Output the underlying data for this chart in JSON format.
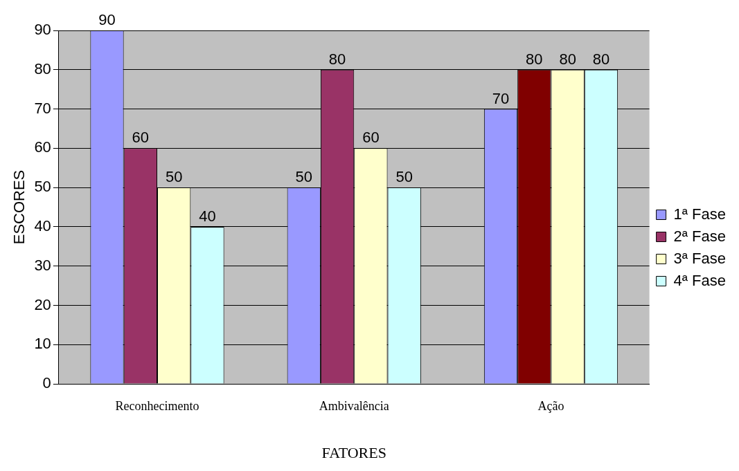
{
  "chart_data": {
    "type": "bar",
    "xlabel": "FATORES",
    "ylabel": "ESCORES",
    "categories": [
      "Reconhecimento",
      "Ambivalência",
      "Ação"
    ],
    "series": [
      {
        "name": "1ª Fase",
        "color": "#9999ff",
        "values": [
          90,
          50,
          70
        ]
      },
      {
        "name": "2ª Fase",
        "color": "#993366",
        "colors": [
          "#993366",
          "#993366",
          "#800000"
        ],
        "values": [
          60,
          80,
          80
        ]
      },
      {
        "name": "3ª Fase",
        "color": "#ffffcc",
        "values": [
          50,
          60,
          80
        ]
      },
      {
        "name": "4ª Fase",
        "color": "#ccffff",
        "values": [
          40,
          50,
          80
        ]
      }
    ],
    "ylim": [
      0,
      90
    ],
    "yticks": [
      0,
      10,
      20,
      30,
      40,
      50,
      60,
      70,
      80,
      90
    ],
    "grid": "y",
    "legend": "right",
    "data_labels": true
  }
}
